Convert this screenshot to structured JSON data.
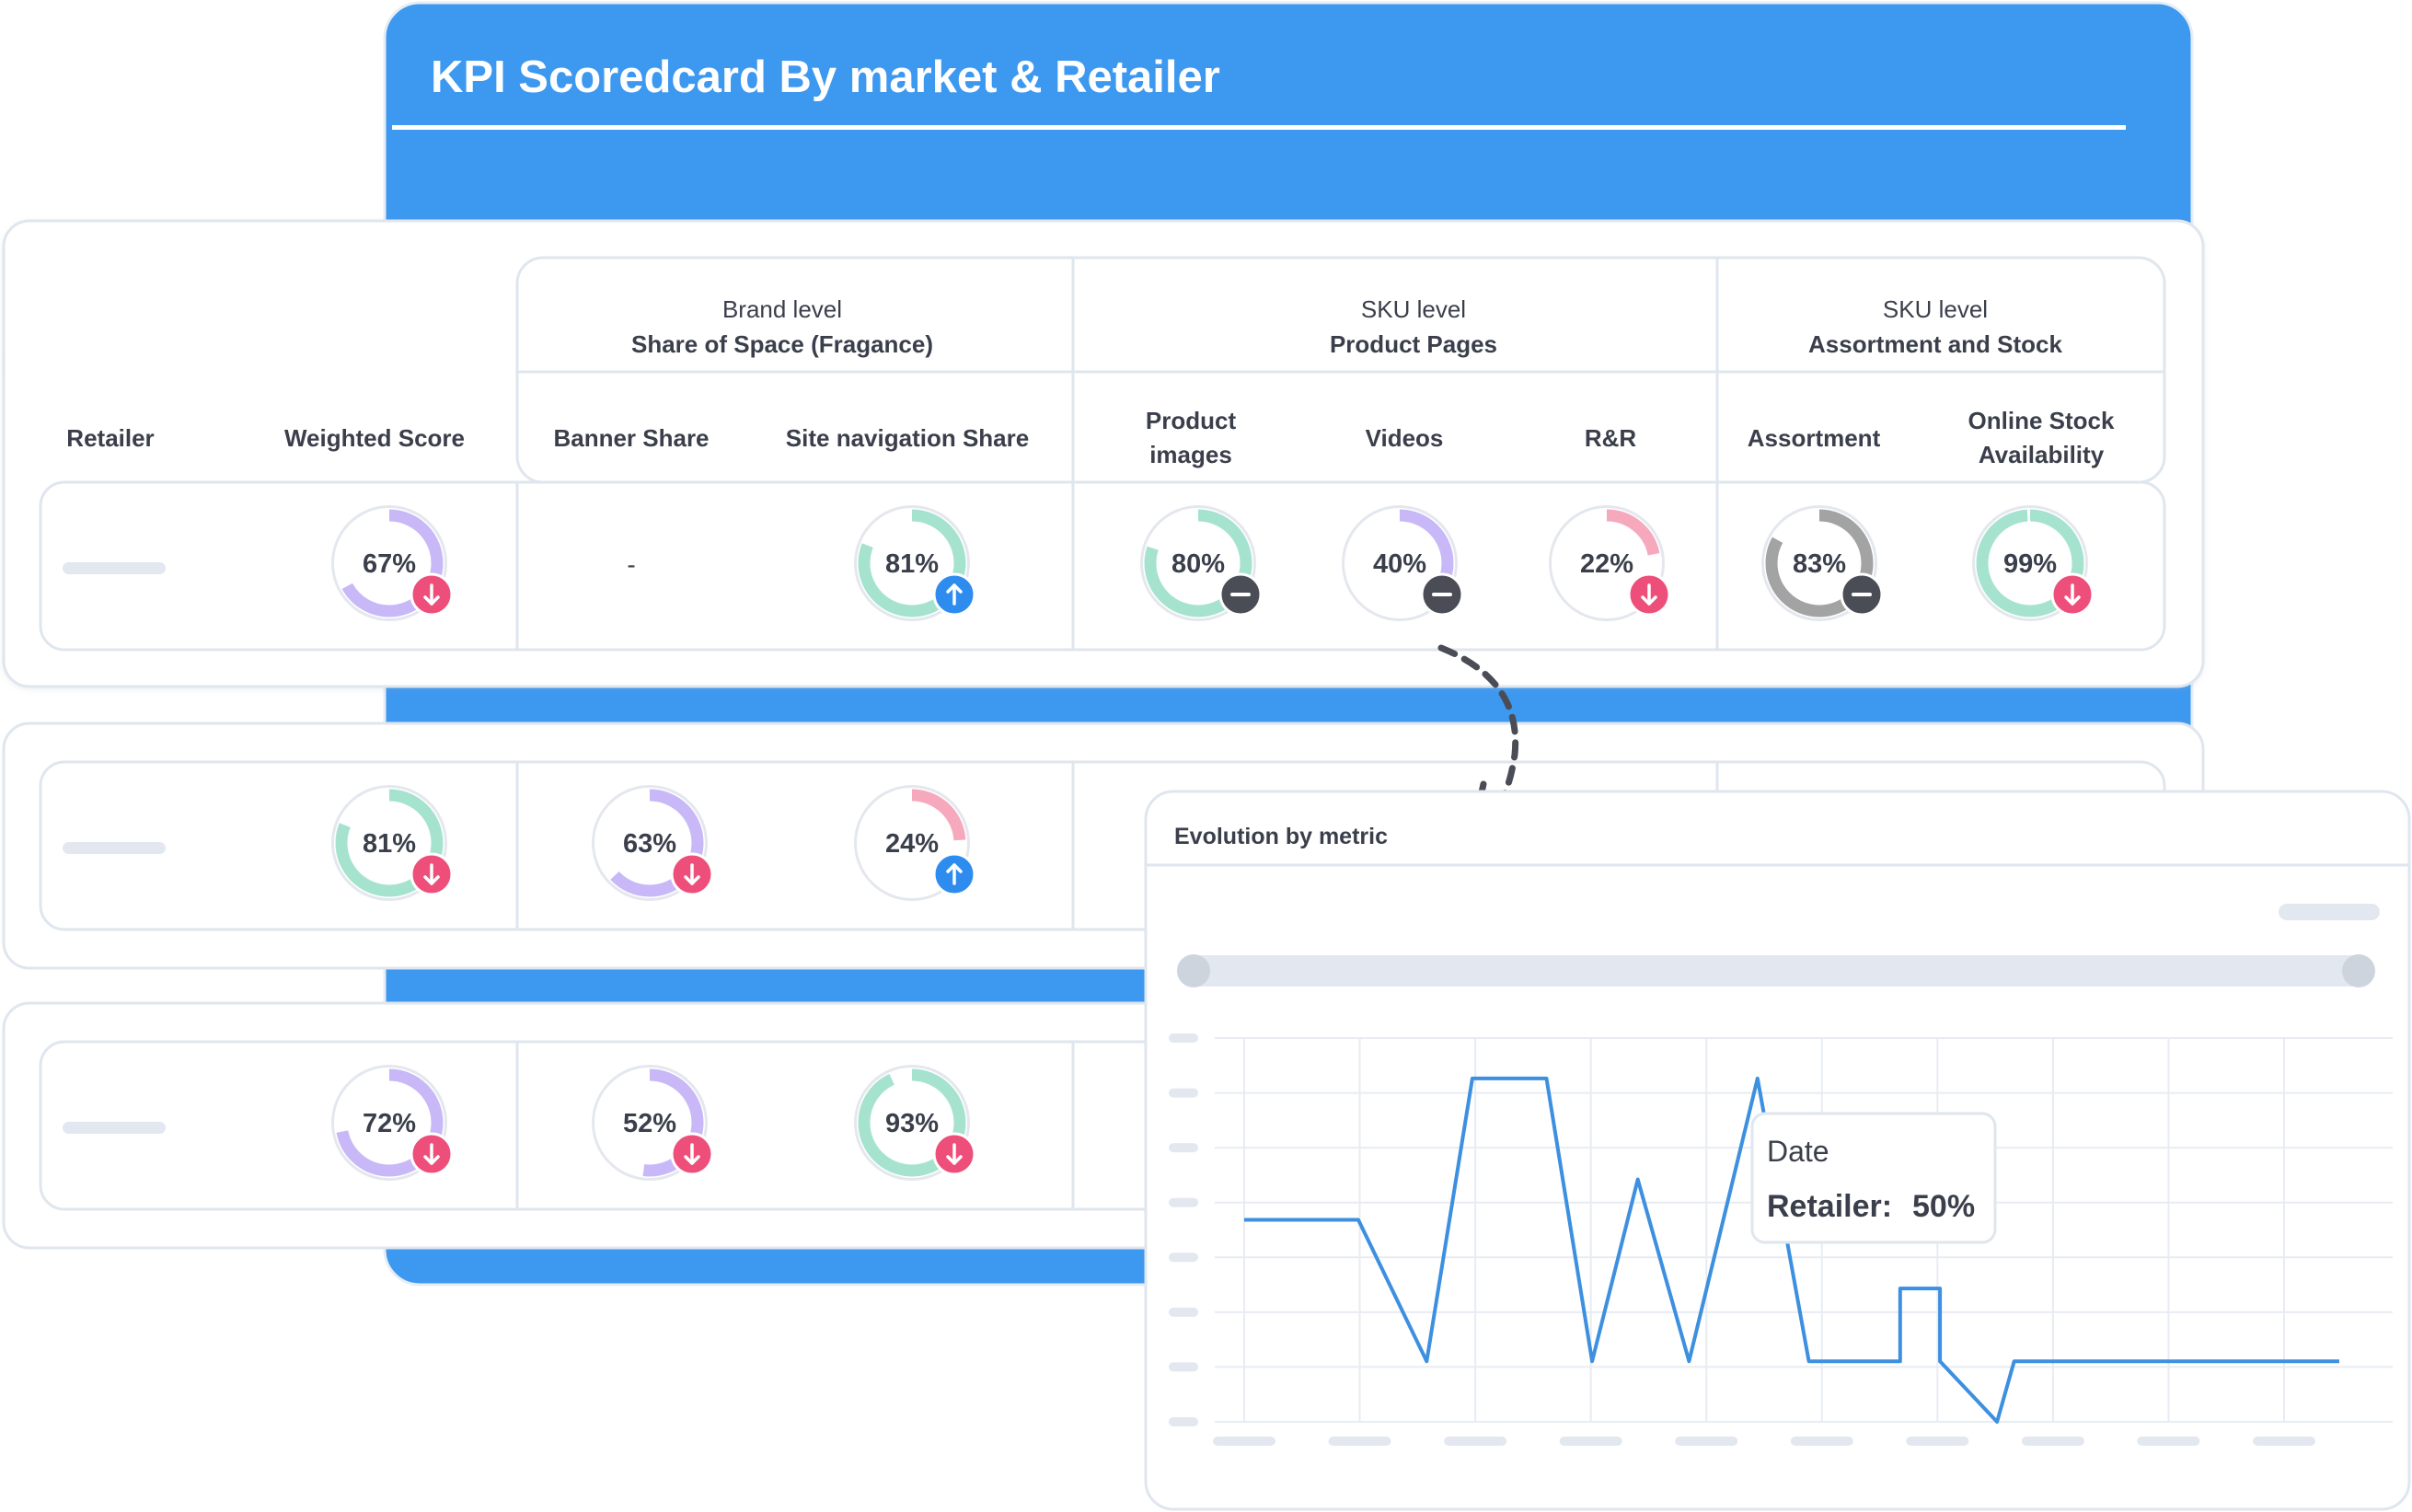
{
  "header": {
    "title": "KPI Scoredcard By market & Retailer"
  },
  "table": {
    "groups": [
      {
        "level": "Brand level",
        "name": "Share of Space (Fragance)"
      },
      {
        "level": "SKU level",
        "name": "Product Pages"
      },
      {
        "level": "SKU level",
        "name": "Assortment and Stock"
      }
    ],
    "columns": {
      "retailer": "Retailer",
      "weighted_score": "Weighted Score",
      "banner_share": "Banner Share",
      "site_nav_share": "Site navigation Share",
      "product_images_line1": "Product",
      "product_images_line2": "images",
      "videos": "Videos",
      "rr": "R&R",
      "assortment": "Assortment",
      "stock_line1": "Online Stock",
      "stock_line2": "Availability"
    },
    "rows": [
      {
        "weighted": {
          "value": 67,
          "label": "67%",
          "trend": "down",
          "color": "#c9b8f7"
        },
        "banner": {
          "label": "-"
        },
        "site_nav": {
          "value": 81,
          "label": "81%",
          "trend": "up",
          "color": "#a6e3cf"
        },
        "product_images": {
          "value": 80,
          "label": "80%",
          "trend": "flat",
          "color": "#a6e3cf"
        },
        "videos": {
          "value": 40,
          "label": "40%",
          "trend": "flat",
          "color": "#c9b8f7"
        },
        "rr": {
          "value": 22,
          "label": "22%",
          "trend": "down",
          "color": "#f6a9bd"
        },
        "assortment": {
          "value": 83,
          "label": "83%",
          "trend": "flat",
          "color": "#a3a3a3"
        },
        "stock": {
          "value": 99,
          "label": "99%",
          "trend": "down",
          "color": "#a6e3cf"
        }
      },
      {
        "weighted": {
          "value": 81,
          "label": "81%",
          "trend": "down",
          "color": "#a6e3cf"
        },
        "banner": {
          "value": 63,
          "label": "63%",
          "trend": "down",
          "color": "#c9b8f7"
        },
        "site_nav": {
          "value": 24,
          "label": "24%",
          "trend": "up",
          "color": "#f6a9bd"
        }
      },
      {
        "weighted": {
          "value": 72,
          "label": "72%",
          "trend": "down",
          "color": "#c9b8f7"
        },
        "banner": {
          "value": 52,
          "label": "52%",
          "trend": "down",
          "color": "#c9b8f7"
        },
        "site_nav": {
          "value": 93,
          "label": "93%",
          "trend": "down",
          "color": "#a6e3cf"
        }
      }
    ]
  },
  "evolution_panel": {
    "title": "Evolution by metric",
    "tooltip": {
      "date_label": "Date",
      "series_label": "Retailer:",
      "value_label": "50%"
    }
  },
  "chart_data": {
    "type": "line",
    "title": "Evolution by metric",
    "series": [
      {
        "name": "Retailer",
        "values": [
          [
            0,
            50
          ],
          [
            1,
            50
          ],
          [
            1.6,
            15
          ],
          [
            2,
            85
          ],
          [
            2.65,
            85
          ],
          [
            3.05,
            15
          ],
          [
            3.45,
            60
          ],
          [
            3.9,
            15
          ],
          [
            4.5,
            85
          ],
          [
            4.95,
            15
          ],
          [
            5.75,
            15
          ],
          [
            5.75,
            33
          ],
          [
            6.1,
            33
          ],
          [
            6.1,
            15
          ],
          [
            6.6,
            0
          ],
          [
            6.75,
            15
          ],
          [
            9.6,
            15
          ]
        ]
      }
    ],
    "xlim": [
      0,
      9.6
    ],
    "ylim": [
      0,
      95
    ],
    "x_tick_count": 10,
    "y_tick_count": 8,
    "grid": true,
    "highlight": {
      "series": "Retailer",
      "value": "50%"
    }
  },
  "colors": {
    "accent_blue": "#3d98f0",
    "line_blue": "#3d8fe0",
    "down_badge": "#ee4f7a",
    "up_badge": "#2f8cef",
    "flat_badge": "#4a4d55",
    "border": "#dfe6ee",
    "placeholder": "#e3e8f0"
  }
}
